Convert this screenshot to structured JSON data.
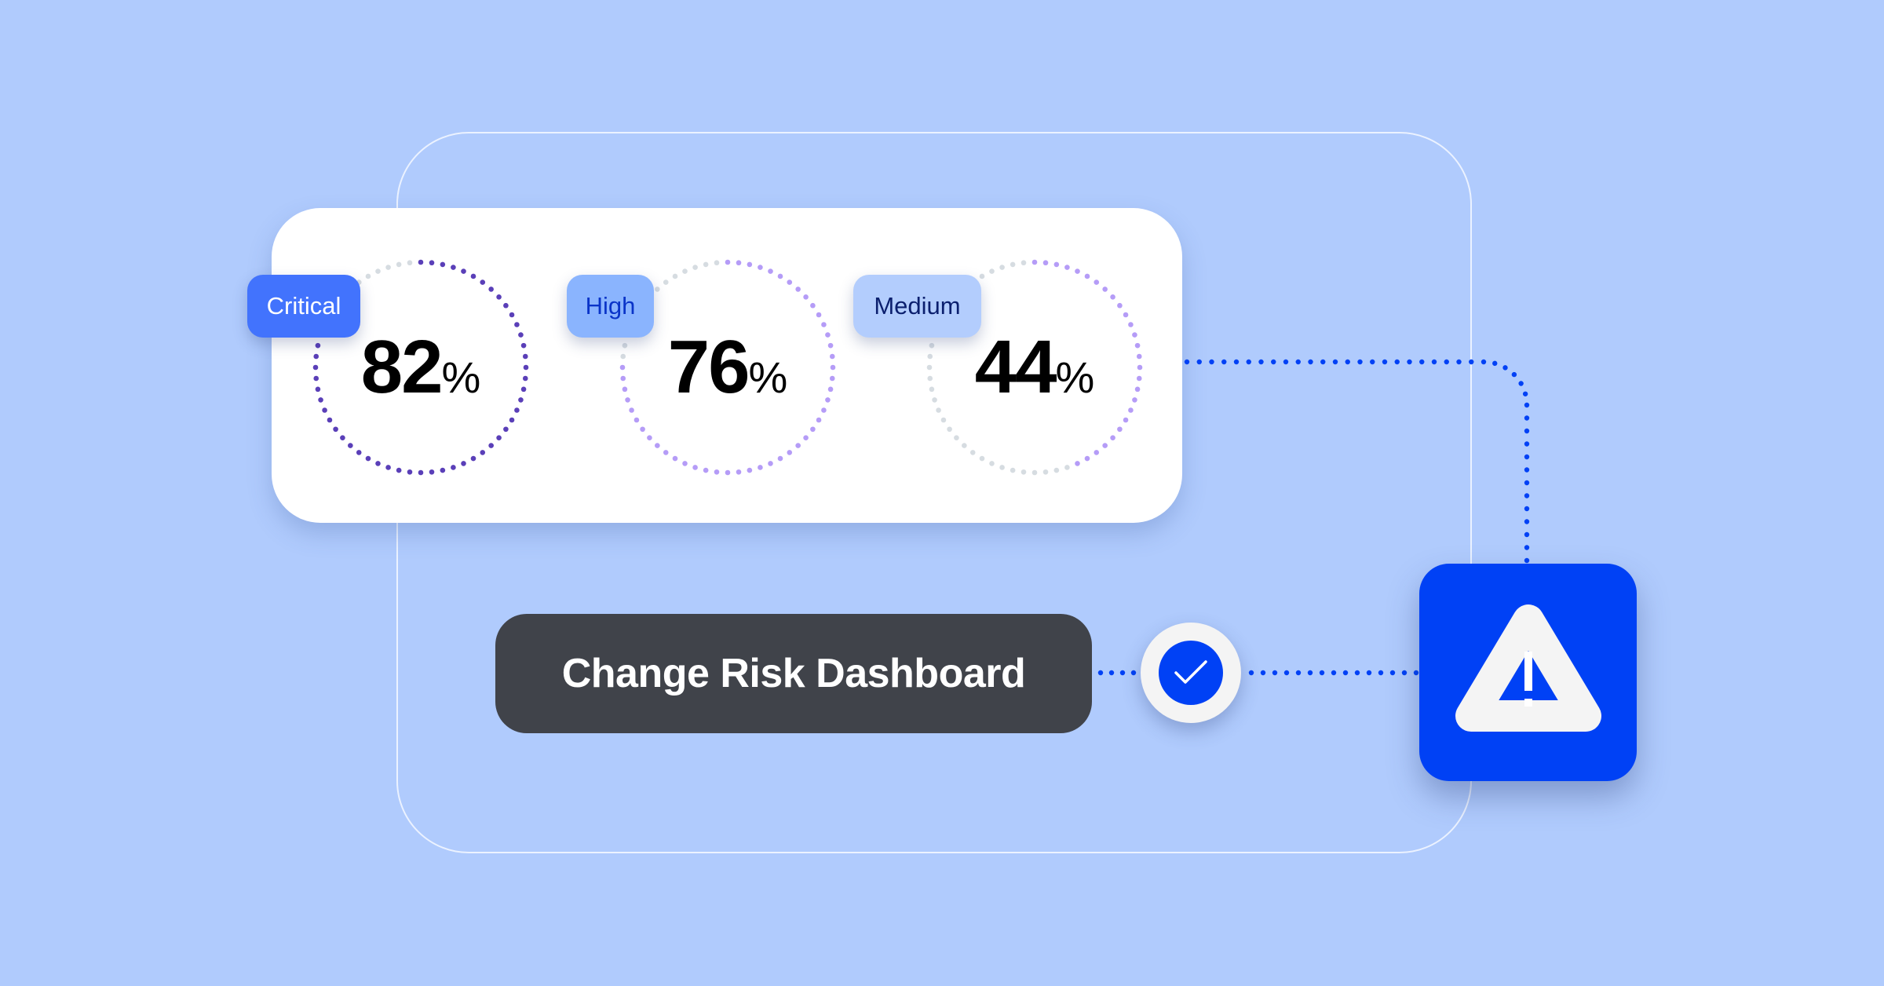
{
  "gauges": [
    {
      "label": "Critical",
      "value": "82",
      "unit": "%",
      "percent": 82,
      "badge_bg": "#4273fd",
      "badge_fg": "#ffffff",
      "dot_color": "#5a3fb8"
    },
    {
      "label": "High",
      "value": "76",
      "unit": "%",
      "percent": 76,
      "badge_bg": "#8ab4fe",
      "badge_fg": "#0a34c8",
      "dot_color": "#b59cf7"
    },
    {
      "label": "Medium",
      "value": "44",
      "unit": "%",
      "percent": 44,
      "badge_bg": "#b3cdfd",
      "badge_fg": "#0b1f6e",
      "dot_color": "#b59cf7"
    }
  ],
  "track_color": "#d6dce1",
  "title": "Change Risk Dashboard",
  "icons": {
    "check": "check-circle-icon",
    "alert": "warning-triangle-icon"
  },
  "accent": "#0041f5"
}
